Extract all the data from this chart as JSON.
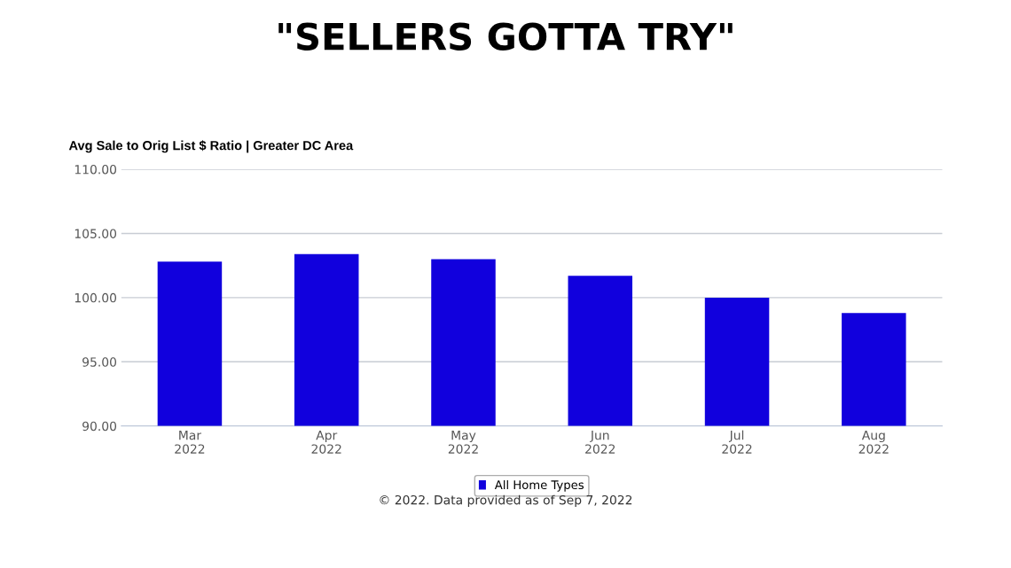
{
  "chart_data": {
    "type": "bar",
    "title": "\"SELLERS GOTTA TRY\"",
    "subtitle": "Avg Sale to Orig List $ Ratio | Greater DC Area",
    "categories": [
      "Mar\n2022",
      "Apr\n2022",
      "May\n2022",
      "Jun\n2022",
      "Jul\n2022",
      "Aug\n2022"
    ],
    "series": [
      {
        "name": "All Home Types",
        "color": "#1100dd",
        "values": [
          102.8,
          103.4,
          103.0,
          101.7,
          100.0,
          98.8
        ]
      }
    ],
    "ylim": [
      90,
      110
    ],
    "yticks": [
      {
        "value": 90,
        "label": "90.00"
      },
      {
        "value": 95,
        "label": "95.00"
      },
      {
        "value": 100,
        "label": "100.00"
      },
      {
        "value": 105,
        "label": "105.00"
      },
      {
        "value": 110,
        "label": "110.00"
      }
    ],
    "grid": "y",
    "legend": "bottom",
    "annotations": [
      "© 2022. Data provided as of Sep 7, 2022"
    ]
  }
}
